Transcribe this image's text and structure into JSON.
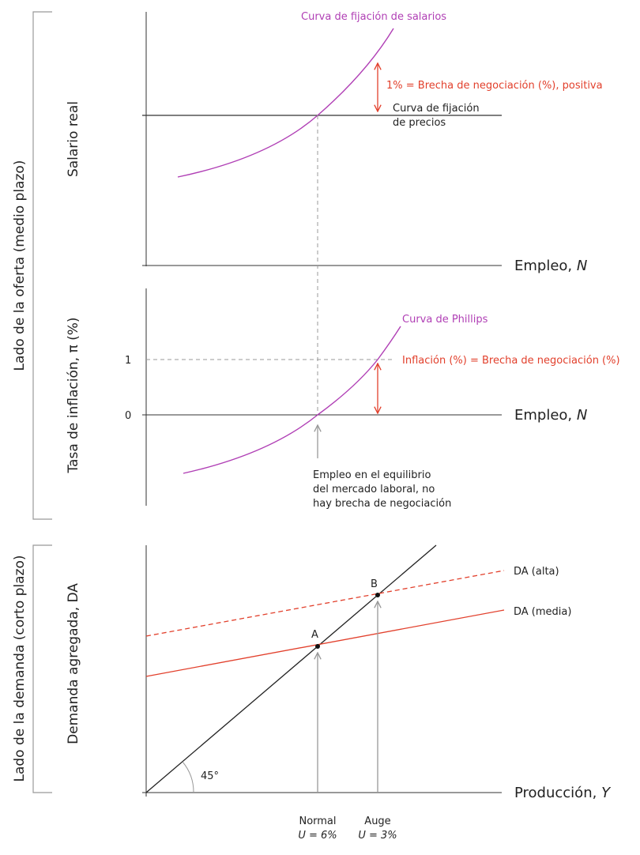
{
  "colors": {
    "wage_curve": "#b03fb5",
    "red": "#e2402c",
    "axis": "#333333",
    "guide": "#999999"
  },
  "brackets": {
    "supply": "Lado de la oferta (medio plazo)",
    "demand": "Lado de la demanda (corto plazo)"
  },
  "top": {
    "ylabel": "Salario real",
    "xlabel": "Empleo, ",
    "xvar": "N",
    "wage_curve": "Curva de fijación de salarios",
    "price_curve_1": "Curva de fijación",
    "price_curve_2": "de precios",
    "gap": "1% = Brecha de negociación (%), positiva"
  },
  "middle": {
    "ylabel": "Tasa de inflación, π (%)",
    "xlabel": "Empleo, ",
    "xvar": "N",
    "tick_1": "1",
    "tick_0": "0",
    "phillips": "Curva de Phillips",
    "inflation": "Inflación (%) = Brecha de negociación (%)",
    "note": [
      "Empleo en el equilibrio",
      "del mercado laboral, no",
      "hay brecha de negociación"
    ]
  },
  "bottom": {
    "ylabel": "Demanda agregada, DA",
    "xlabel": "Producción, ",
    "xvar": "Y",
    "da_high": "DA (alta)",
    "da_mid": "DA (media)",
    "point_a": "A",
    "point_b": "B",
    "angle": "45°",
    "normal": "Normal",
    "normal_u": "U = 6%",
    "boom": "Auge",
    "boom_u": "U = 3%"
  }
}
